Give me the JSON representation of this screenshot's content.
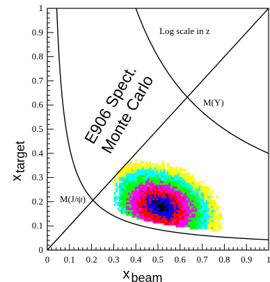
{
  "chart_data": {
    "type": "heatmap",
    "title": "",
    "xlabel": {
      "main": "x",
      "sub": "beam"
    },
    "ylabel": {
      "main": "x",
      "sub": "target"
    },
    "xlim": [
      0,
      1
    ],
    "ylim": [
      0,
      1
    ],
    "x_ticks": [
      "0",
      "0.1",
      "0.2",
      "0.3",
      "0.4",
      "0.5",
      "0.6",
      "0.7",
      "0.8",
      "0.9",
      "1"
    ],
    "y_ticks": [
      "0",
      "0.1",
      "0.2",
      "0.3",
      "0.4",
      "0.5",
      "0.6",
      "0.7",
      "0.8",
      "0.9",
      "1"
    ],
    "annotations": {
      "scale_note": "Log scale in z",
      "jpsi": "M(J/ψ)",
      "upsilon": "M(Υ)",
      "mc_line1": "E906 Spect.",
      "mc_line2": "Monte Carlo"
    },
    "curves": [
      {
        "name": "M(J/ψ)",
        "type": "hyperbola",
        "k": 0.0425
      },
      {
        "name": "M(Υ)",
        "type": "hyperbola",
        "k": 0.4
      }
    ],
    "diagonal": {
      "from": [
        0,
        0
      ],
      "to": [
        1,
        1
      ]
    },
    "distribution": {
      "center": [
        0.51,
        0.175
      ],
      "x_range": [
        0.3,
        0.9
      ],
      "y_range": [
        0.07,
        0.45
      ],
      "color_levels": [
        "#ffff00",
        "#00ffff",
        "#00ff00",
        "#ff00ff",
        "#ff0000",
        "#0000ff",
        "#000000"
      ]
    }
  }
}
